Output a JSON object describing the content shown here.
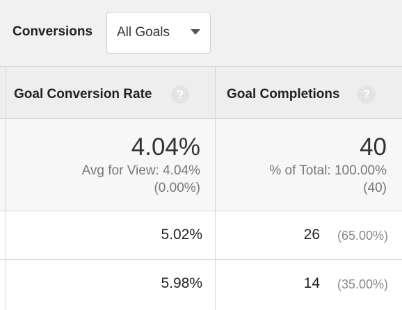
{
  "toolbar": {
    "label": "Conversions",
    "dropdown": "All Goals"
  },
  "table": {
    "columns": [
      {
        "title": "Goal Conversion Rate",
        "help": "?"
      },
      {
        "title": "Goal Completions",
        "help": "?"
      }
    ],
    "summary": [
      {
        "value": "4.04%",
        "note": "Avg for View: 4.04%",
        "detail": "(0.00%)"
      },
      {
        "value": "40",
        "note": "% of Total: 100.00%",
        "detail": "(40)"
      }
    ],
    "rows": [
      [
        {
          "value": "5.02%"
        },
        {
          "value": "26",
          "share": "(65.00%)"
        }
      ],
      [
        {
          "value": "5.98%"
        },
        {
          "value": "14",
          "share": "(35.00%)"
        }
      ]
    ]
  }
}
